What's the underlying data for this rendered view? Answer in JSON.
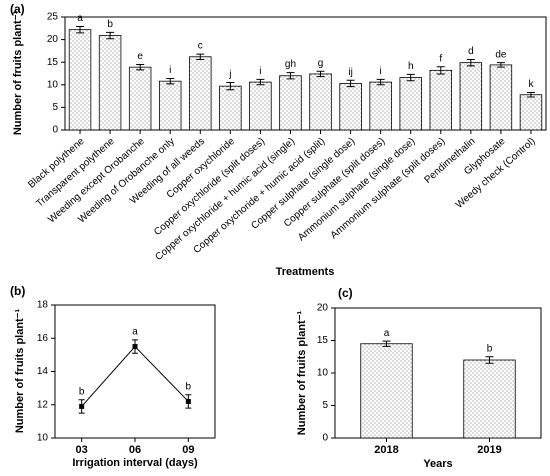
{
  "chart_data": [
    {
      "type": "bar",
      "title": "(a)",
      "ylabel": "Number of fruits plant⁻¹",
      "xlabel": "Treatments",
      "categories": [
        "Black polythene",
        "Transparent polythene",
        "Weeding except Orobanche",
        "Weeding of Orobanche only",
        "Weeding of all weeds",
        "Copper oxychloride",
        "Copper oxychloride (split doses)",
        "Copper oxychloride + humic acid (single)",
        "Copper oxychoride + humic acid (split)",
        "Copper sulphate (single dose)",
        "Copper sulphate (split doses)",
        "Ammonium sulphate (single dose)",
        "Ammonium sulphate (split doses)",
        "Pendimethalin",
        "Glyphosate",
        "Weedy check (Control)"
      ],
      "values": [
        22.2,
        20.9,
        13.9,
        10.8,
        16.2,
        9.7,
        10.6,
        12.0,
        12.4,
        10.3,
        10.6,
        11.6,
        13.2,
        14.9,
        14.4,
        7.8
      ],
      "errors": [
        0.7,
        0.7,
        0.6,
        0.6,
        0.6,
        0.8,
        0.6,
        0.7,
        0.6,
        0.7,
        0.6,
        0.7,
        0.8,
        0.7,
        0.5,
        0.5
      ],
      "annotations": [
        "a",
        "b",
        "e",
        "i",
        "c",
        "j",
        "i",
        "gh",
        "g",
        "ij",
        "i",
        "h",
        "f",
        "d",
        "de",
        "k"
      ],
      "color": "#555555",
      "ylim": [
        0,
        25
      ],
      "yticks": [
        0,
        5,
        10,
        15,
        20,
        25
      ]
    },
    {
      "type": "line",
      "title": "(b)",
      "ylabel": "Number of fruits plant⁻¹",
      "xlabel": "Irrigation interval (days)",
      "categories": [
        "03",
        "06",
        "09"
      ],
      "values": [
        11.9,
        15.5,
        12.2
      ],
      "errors": [
        0.4,
        0.4,
        0.4
      ],
      "annotations": [
        "b",
        "a",
        "b"
      ],
      "color": "#000000",
      "ylim": [
        10,
        18
      ],
      "yticks": [
        10,
        12,
        14,
        16,
        18
      ]
    },
    {
      "type": "bar",
      "title": "(c)",
      "ylabel": "Number of fruits plant⁻¹",
      "xlabel": "Years",
      "categories": [
        "2018",
        "2019"
      ],
      "values": [
        14.5,
        12.0
      ],
      "errors": [
        0.4,
        0.5
      ],
      "annotations": [
        "a",
        "b"
      ],
      "color": "#555555",
      "ylim": [
        0,
        20
      ],
      "yticks": [
        0,
        5,
        10,
        15,
        20
      ]
    }
  ]
}
